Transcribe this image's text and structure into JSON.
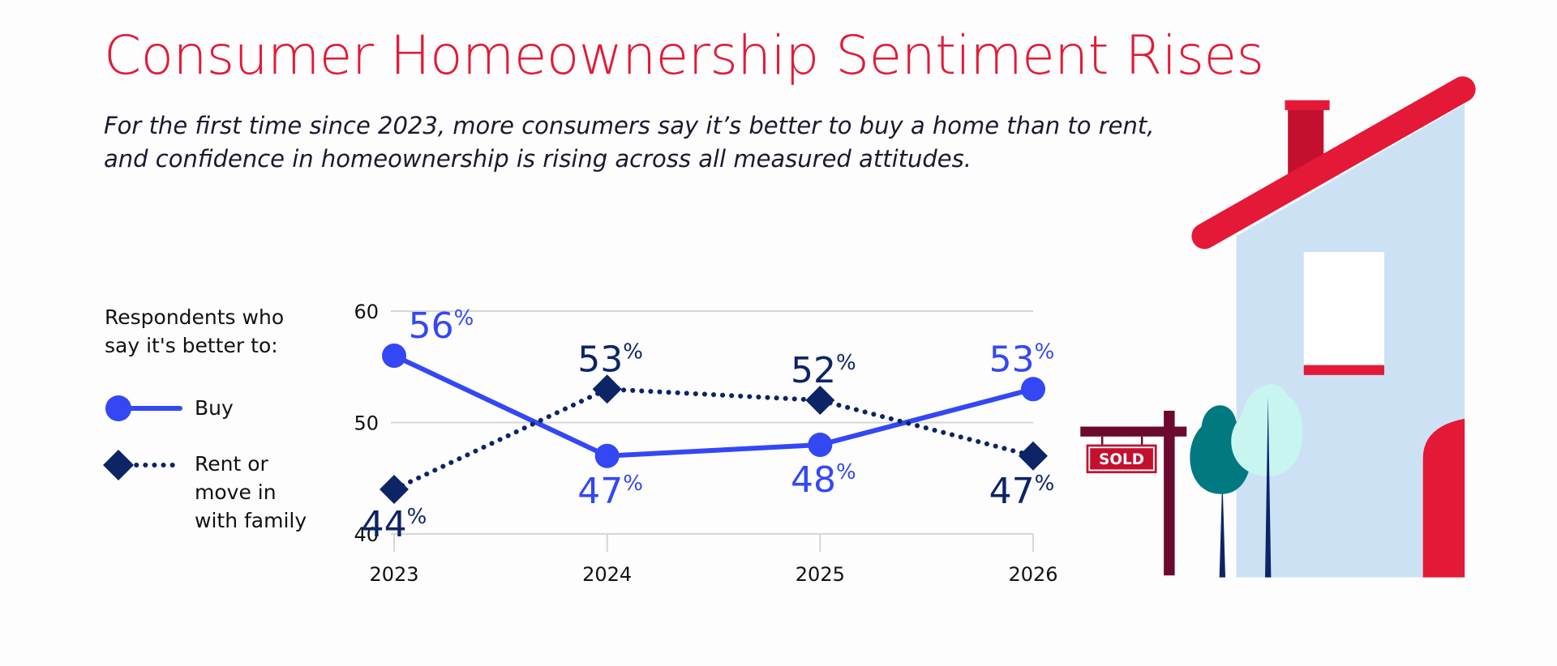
{
  "chart_data": {
    "type": "line",
    "title": "Consumer Homeownership Sentiment Rises",
    "subtitle": [
      "For the first time since 2023, more consumers say it’s better to buy a home than to rent,",
      "and confidence in homeownership is rising across all measured attitudes."
    ],
    "legend_title": "Respondents who say it's better to:",
    "categories": [
      "2023",
      "2024",
      "2025",
      "2026"
    ],
    "series": [
      {
        "name": "Buy",
        "color": "#3347f5",
        "style": "solid",
        "marker": "circle",
        "values": [
          56,
          47,
          48,
          53
        ],
        "value_labels": [
          "56%",
          "47%",
          "48%",
          "53%"
        ]
      },
      {
        "name": "Rent or move in with family",
        "color": "#0d2466",
        "style": "dotted",
        "marker": "diamond",
        "values": [
          44,
          53,
          52,
          47
        ],
        "value_labels": [
          "44%",
          "53%",
          "52%",
          "47%"
        ]
      }
    ],
    "ylim": [
      40,
      60
    ],
    "yticks": [
      40,
      50,
      60
    ],
    "grid": true
  },
  "illustration": {
    "sign": "SOLD"
  }
}
